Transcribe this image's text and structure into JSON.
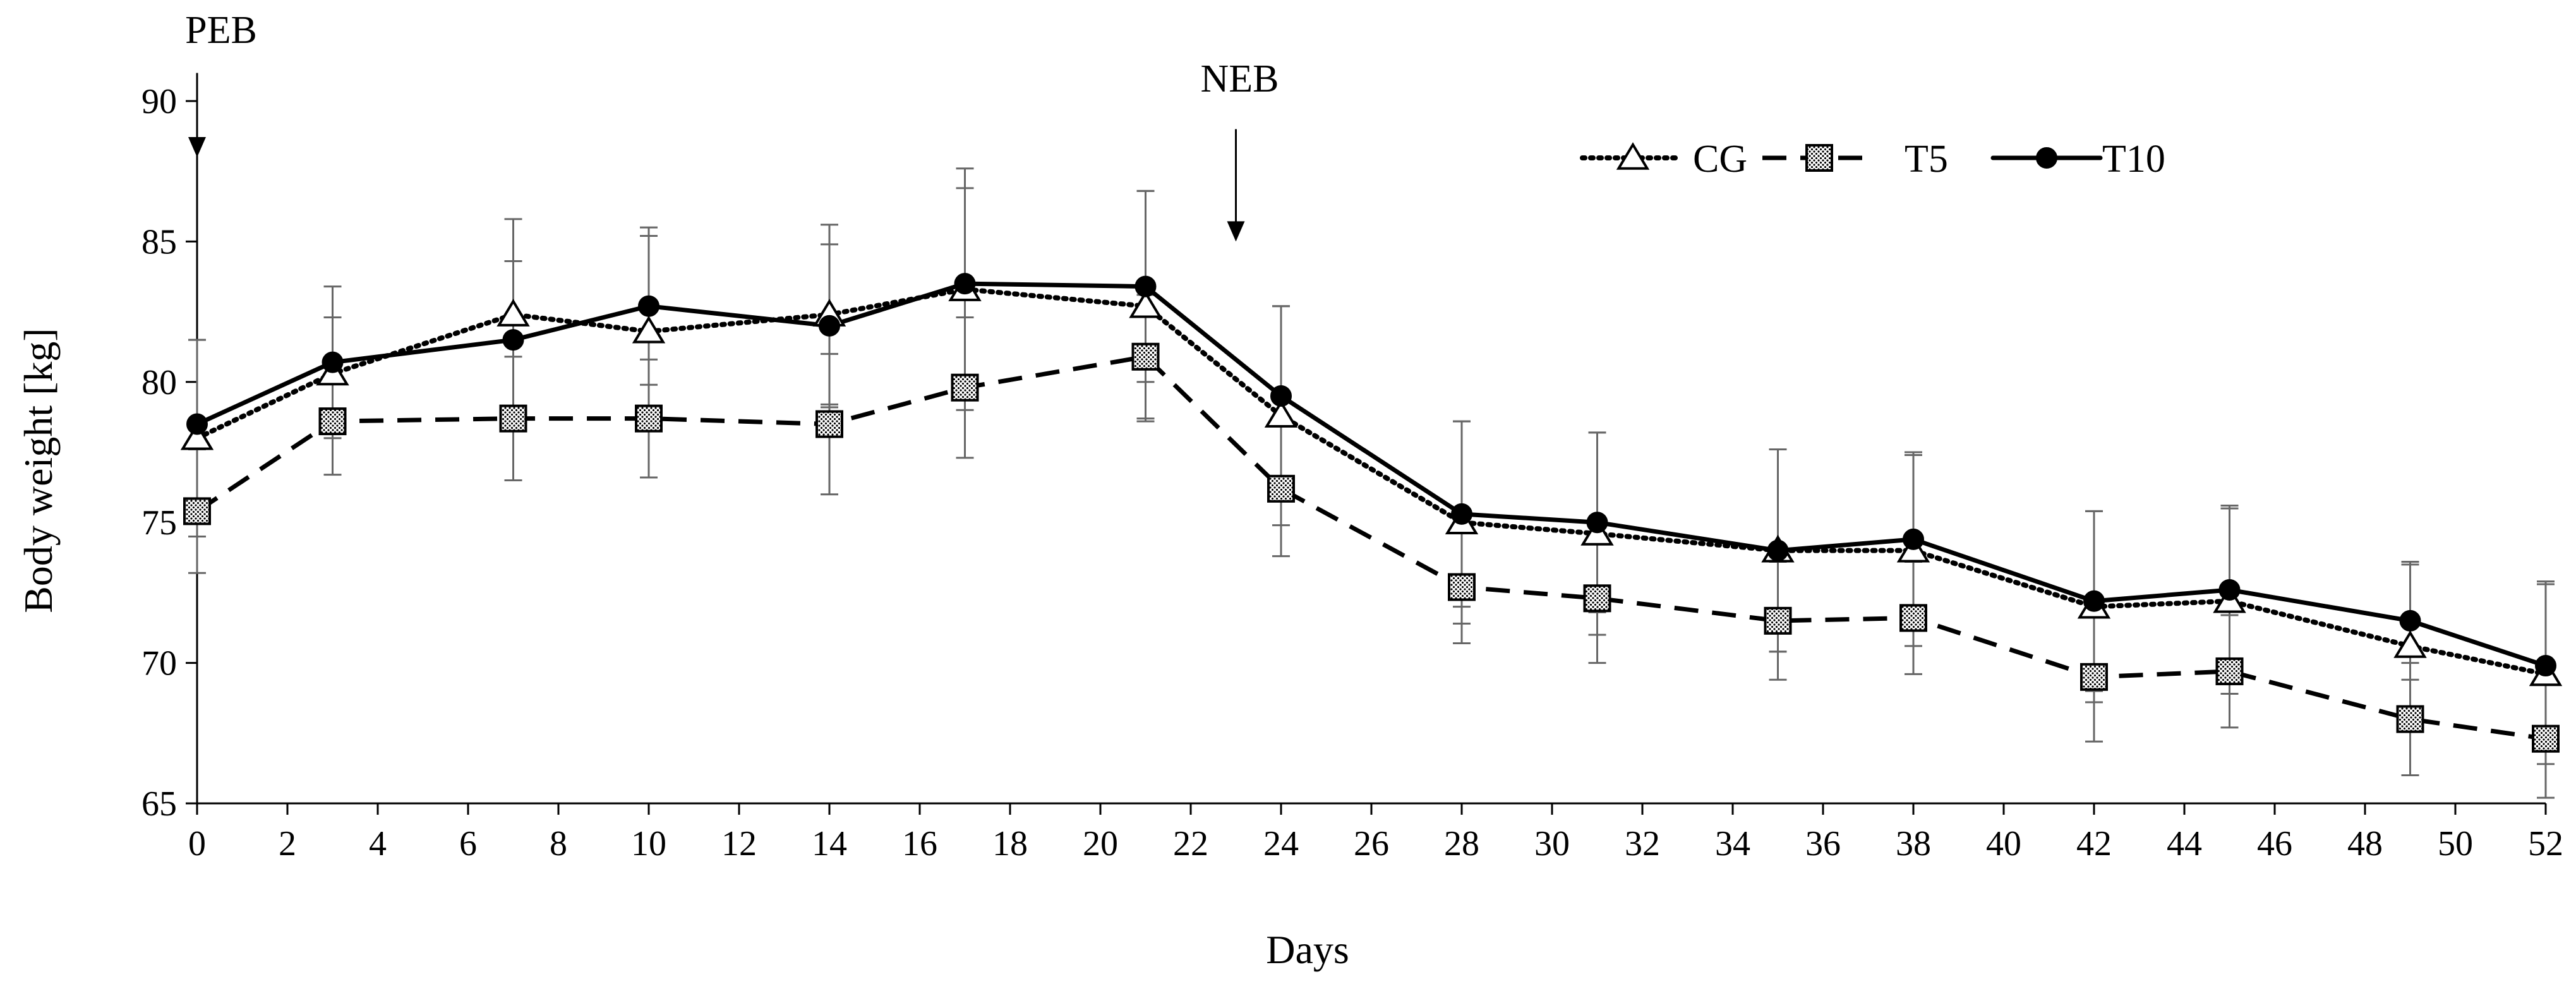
{
  "chart_data": {
    "type": "line",
    "title": "",
    "xlabel": "Days",
    "ylabel": "Body weight [kg]",
    "xlim": [
      0,
      52
    ],
    "ylim": [
      65,
      90
    ],
    "xticks": [
      0,
      2,
      4,
      6,
      8,
      10,
      12,
      14,
      16,
      18,
      20,
      22,
      24,
      26,
      28,
      30,
      32,
      34,
      36,
      38,
      40,
      42,
      44,
      46,
      48,
      50,
      52
    ],
    "yticks": [
      65,
      70,
      75,
      80,
      85,
      90
    ],
    "grid": false,
    "legend_position": "top-right",
    "x": [
      0,
      3,
      7,
      10,
      14,
      17,
      21,
      24,
      28,
      31,
      35,
      38,
      42,
      45,
      49,
      52
    ],
    "series": [
      {
        "name": "CG",
        "line_style": "dotted",
        "marker": "triangle-open",
        "values": [
          78.0,
          80.3,
          82.4,
          81.8,
          82.4,
          83.3,
          82.7,
          78.8,
          75.0,
          74.6,
          74.0,
          74.0,
          72.0,
          72.2,
          70.6,
          69.6
        ],
        "errors": [
          3.5,
          2.0,
          3.4,
          3.4,
          3.2,
          4.3,
          4.1,
          3.9,
          3.6,
          3.6,
          3.6,
          3.4,
          3.4,
          3.3,
          2.9,
          3.2
        ]
      },
      {
        "name": "T5",
        "line_style": "dashed",
        "marker": "square-dotted",
        "values": [
          75.4,
          78.6,
          78.7,
          78.7,
          78.5,
          79.8,
          80.9,
          76.2,
          72.7,
          72.3,
          71.5,
          71.6,
          69.5,
          69.7,
          68.0,
          67.3
        ],
        "errors": [
          2.2,
          1.9,
          2.2,
          2.1,
          2.5,
          2.5,
          2.2,
          2.4,
          2.0,
          2.3,
          2.1,
          2.0,
          2.3,
          2.0,
          2.0,
          2.1
        ]
      },
      {
        "name": "T10",
        "line_style": "solid",
        "marker": "circle-filled",
        "values": [
          78.5,
          80.7,
          81.5,
          82.7,
          82.0,
          83.5,
          83.4,
          79.5,
          75.3,
          75.0,
          74.0,
          74.4,
          72.2,
          72.6,
          71.5,
          69.9
        ],
        "errors": [
          3.0,
          2.7,
          2.8,
          2.8,
          2.9,
          3.4,
          3.4,
          3.2,
          3.3,
          3.2,
          3.6,
          3.1,
          3.2,
          3.0,
          2.1,
          3.0
        ]
      }
    ],
    "annotations": [
      {
        "label": "PEB",
        "x": 0,
        "y_arrow_tip": 88,
        "y_arrow_tail": 91
      },
      {
        "label": "NEB",
        "x": 23,
        "y_arrow_tip": 85,
        "y_arrow_tail": 89
      }
    ]
  }
}
